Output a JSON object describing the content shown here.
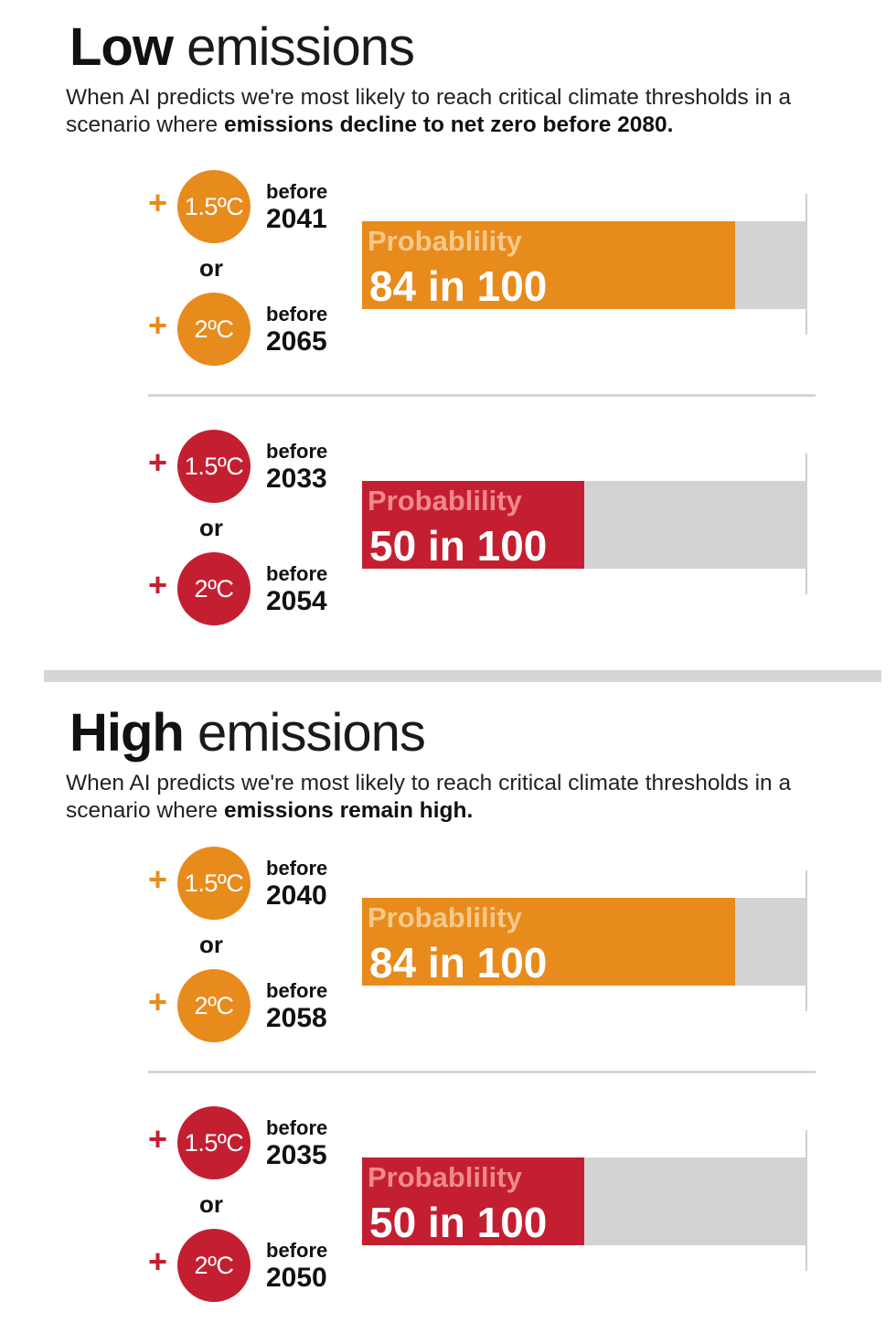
{
  "colors": {
    "orange": "#e88b1d",
    "red": "#c41f31",
    "orange_label": "#f6c98a",
    "red_label": "#f08a8a",
    "remainder": "#d3d3d5"
  },
  "sections": [
    {
      "title_bold": "Low",
      "title_light": "emissions",
      "subtitle_plain": "When AI predicts we're most likely to reach critical climate thresholds in a scenario where ",
      "subtitle_bold": "emissions decline to net zero before 2080.",
      "groups": [
        {
          "color": "orange",
          "rows": [
            {
              "plus": "+",
              "threshold": "1.5ºC",
              "before": "before",
              "year": "2041"
            },
            {
              "plus": "+",
              "threshold": "2ºC",
              "before": "before",
              "year": "2065"
            }
          ],
          "or": "or",
          "prob_label": "Probablility",
          "prob_value": "84 in 100"
        },
        {
          "color": "red",
          "rows": [
            {
              "plus": "+",
              "threshold": "1.5ºC",
              "before": "before",
              "year": "2033"
            },
            {
              "plus": "+",
              "threshold": "2ºC",
              "before": "before",
              "year": "2054"
            }
          ],
          "or": "or",
          "prob_label": "Probablility",
          "prob_value": "50 in 100"
        }
      ]
    },
    {
      "title_bold": "High",
      "title_light": "emissions",
      "subtitle_plain": "When AI predicts we're most likely to reach critical climate thresholds in a scenario where ",
      "subtitle_bold": "emissions remain high.",
      "groups": [
        {
          "color": "orange",
          "rows": [
            {
              "plus": "+",
              "threshold": "1.5ºC",
              "before": "before",
              "year": "2040"
            },
            {
              "plus": "+",
              "threshold": "2ºC",
              "before": "before",
              "year": "2058"
            }
          ],
          "or": "or",
          "prob_label": "Probablility",
          "prob_value": "84 in 100"
        },
        {
          "color": "red",
          "rows": [
            {
              "plus": "+",
              "threshold": "1.5ºC",
              "before": "before",
              "year": "2035"
            },
            {
              "plus": "+",
              "threshold": "2ºC",
              "before": "before",
              "year": "2050"
            }
          ],
          "or": "or",
          "prob_label": "Probablility",
          "prob_value": "50 in 100"
        }
      ]
    }
  ],
  "chart_data": {
    "type": "bar",
    "categories": [
      "Low emissions: +1.5ºC before 2041 or +2ºC before 2065",
      "Low emissions: +1.5ºC before 2033 or +2ºC before 2054",
      "High emissions: +1.5ºC before 2040 or +2ºC before 2058",
      "High emissions: +1.5ºC before 2035 or +2ºC before 2050"
    ],
    "values": [
      84,
      50,
      84,
      50
    ],
    "ylim": [
      0,
      100
    ],
    "grid": false
  }
}
